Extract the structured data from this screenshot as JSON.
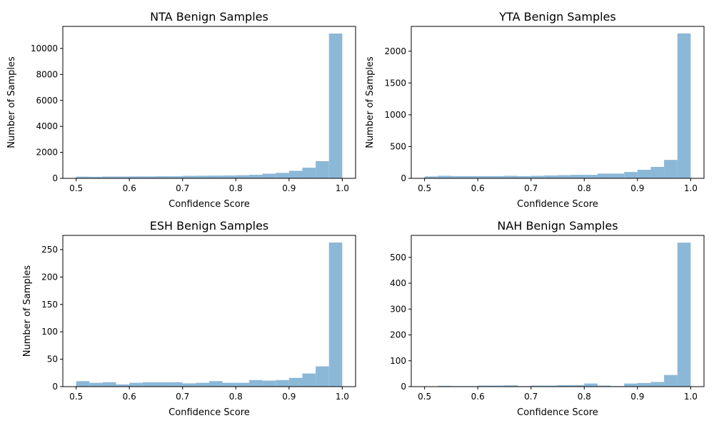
{
  "colors": {
    "bar": "#8cb8d8",
    "axis": "#000000",
    "background": "#ffffff"
  },
  "chart_data": [
    {
      "type": "bar",
      "title": "NTA Benign Samples",
      "xlabel": "Confidence Score",
      "ylabel": "Number of Samples",
      "xlim": [
        0.475,
        1.025
      ],
      "ylim": [
        0,
        11700
      ],
      "xticks": [
        0.5,
        0.6,
        0.7,
        0.8,
        0.9,
        1.0
      ],
      "xtick_labels": [
        "0.5",
        "0.6",
        "0.7",
        "0.8",
        "0.9",
        "1.0"
      ],
      "yticks": [
        0,
        2000,
        4000,
        6000,
        8000,
        10000
      ],
      "ytick_labels": [
        "0",
        "2000",
        "4000",
        "6000",
        "8000",
        "10000"
      ],
      "bin_edges": [
        0.5,
        0.525,
        0.55,
        0.575,
        0.6,
        0.625,
        0.65,
        0.675,
        0.7,
        0.725,
        0.75,
        0.775,
        0.8,
        0.825,
        0.85,
        0.875,
        0.9,
        0.925,
        0.95,
        0.975,
        1.0
      ],
      "values": [
        130,
        120,
        140,
        140,
        150,
        150,
        160,
        160,
        190,
        200,
        210,
        220,
        240,
        270,
        360,
        420,
        580,
        820,
        1320,
        11150
      ]
    },
    {
      "type": "bar",
      "title": "YTA Benign Samples",
      "xlabel": "Confidence Score",
      "ylabel": "Number of Samples",
      "xlim": [
        0.475,
        1.025
      ],
      "ylim": [
        0,
        2390
      ],
      "xticks": [
        0.5,
        0.6,
        0.7,
        0.8,
        0.9,
        1.0
      ],
      "xtick_labels": [
        "0.5",
        "0.6",
        "0.7",
        "0.8",
        "0.9",
        "1.0"
      ],
      "yticks": [
        0,
        500,
        1000,
        1500,
        2000
      ],
      "ytick_labels": [
        "0",
        "500",
        "1000",
        "1500",
        "2000"
      ],
      "bin_edges": [
        0.5,
        0.525,
        0.55,
        0.575,
        0.6,
        0.625,
        0.65,
        0.675,
        0.7,
        0.725,
        0.75,
        0.775,
        0.8,
        0.825,
        0.85,
        0.875,
        0.9,
        0.925,
        0.95,
        0.975,
        1.0
      ],
      "values": [
        30,
        40,
        35,
        35,
        35,
        35,
        40,
        35,
        40,
        45,
        50,
        55,
        55,
        75,
        75,
        100,
        135,
        180,
        290,
        2280
      ]
    },
    {
      "type": "bar",
      "title": "ESH Benign Samples",
      "xlabel": "Confidence Score",
      "ylabel": "Number of Samples",
      "xlim": [
        0.475,
        1.025
      ],
      "ylim": [
        0,
        276
      ],
      "xticks": [
        0.5,
        0.6,
        0.7,
        0.8,
        0.9,
        1.0
      ],
      "xtick_labels": [
        "0.5",
        "0.6",
        "0.7",
        "0.8",
        "0.9",
        "1.0"
      ],
      "yticks": [
        0,
        50,
        100,
        150,
        200,
        250
      ],
      "ytick_labels": [
        "0",
        "50",
        "100",
        "150",
        "200",
        "250"
      ],
      "bin_edges": [
        0.5,
        0.525,
        0.55,
        0.575,
        0.6,
        0.625,
        0.65,
        0.675,
        0.7,
        0.725,
        0.75,
        0.775,
        0.8,
        0.825,
        0.85,
        0.875,
        0.9,
        0.925,
        0.95,
        0.975,
        1.0
      ],
      "values": [
        10,
        7,
        8,
        4,
        7,
        8,
        8,
        8,
        6,
        7,
        10,
        7,
        7,
        12,
        11,
        12,
        16,
        24,
        37,
        263
      ]
    },
    {
      "type": "bar",
      "title": "NAH Benign Samples",
      "xlabel": "Confidence Score",
      "ylabel": "",
      "xlim": [
        0.475,
        1.025
      ],
      "ylim": [
        0,
        585
      ],
      "xticks": [
        0.5,
        0.6,
        0.7,
        0.8,
        0.9,
        1.0
      ],
      "xtick_labels": [
        "0.5",
        "0.6",
        "0.7",
        "0.8",
        "0.9",
        "1.0"
      ],
      "yticks": [
        0,
        100,
        200,
        300,
        400,
        500
      ],
      "ytick_labels": [
        "0",
        "100",
        "200",
        "300",
        "400",
        "500"
      ],
      "bin_edges": [
        0.5,
        0.525,
        0.55,
        0.575,
        0.6,
        0.625,
        0.65,
        0.675,
        0.7,
        0.725,
        0.75,
        0.775,
        0.8,
        0.825,
        0.85,
        0.875,
        0.9,
        0.925,
        0.95,
        0.975,
        1.0
      ],
      "values": [
        1,
        3,
        2,
        2,
        4,
        4,
        5,
        2,
        4,
        4,
        6,
        6,
        12,
        4,
        2,
        12,
        14,
        18,
        45,
        557
      ]
    }
  ]
}
